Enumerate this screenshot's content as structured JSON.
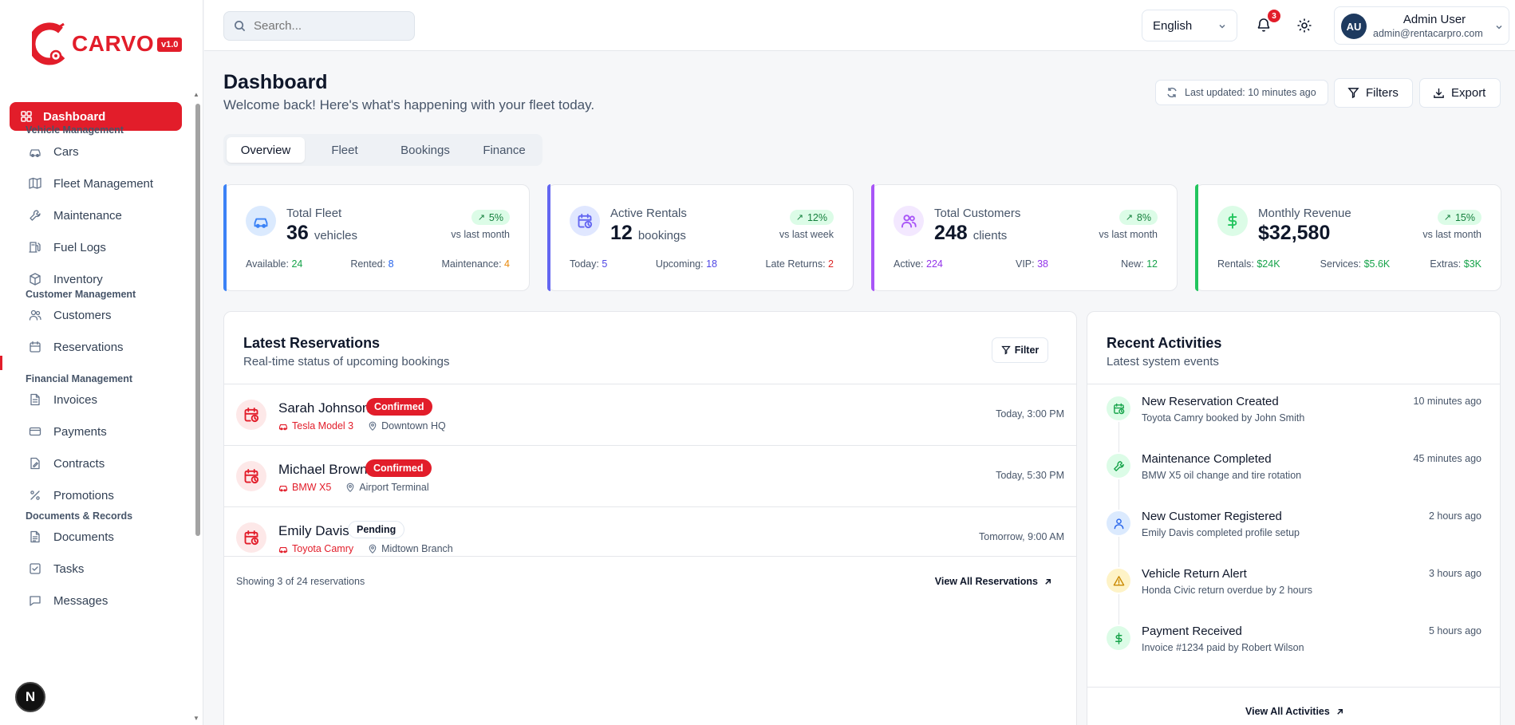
{
  "brand": {
    "name": "CARVO",
    "version": "v1.0",
    "accent": "#e21d2a"
  },
  "sidebar": {
    "active": {
      "label": "Dashboard",
      "icon": "dashboard-icon"
    },
    "sections": [
      {
        "title": "Vehicle Management",
        "items": [
          {
            "label": "Cars",
            "icon": "car-icon"
          },
          {
            "label": "Fleet Management",
            "icon": "map-icon"
          },
          {
            "label": "Maintenance",
            "icon": "wrench-icon"
          },
          {
            "label": "Fuel Logs",
            "icon": "fuel-icon"
          },
          {
            "label": "Inventory",
            "icon": "box-icon"
          }
        ]
      },
      {
        "title": "Customer Management",
        "items": [
          {
            "label": "Customers",
            "icon": "users-icon"
          },
          {
            "label": "Reservations",
            "icon": "calendar-icon"
          }
        ]
      },
      {
        "title": "Financial Management",
        "items": [
          {
            "label": "Invoices",
            "icon": "file-icon"
          },
          {
            "label": "Payments",
            "icon": "credit-card-icon"
          },
          {
            "label": "Contracts",
            "icon": "contract-icon"
          },
          {
            "label": "Promotions",
            "icon": "percent-icon"
          }
        ]
      },
      {
        "title": "Documents & Records",
        "items": [
          {
            "label": "Documents",
            "icon": "document-icon"
          },
          {
            "label": "Tasks",
            "icon": "task-icon"
          },
          {
            "label": "Messages",
            "icon": "message-icon"
          }
        ]
      }
    ],
    "badge": "N"
  },
  "topbar": {
    "search_placeholder": "Search...",
    "language": "English",
    "notifications": "3",
    "user": {
      "initials": "AU",
      "name": "Admin User",
      "email": "admin@rentacarpro.com"
    }
  },
  "header": {
    "title": "Dashboard",
    "subtitle": "Welcome back! Here's what's happening with your fleet today.",
    "last_updated": "Last updated: 10 minutes ago",
    "filters": "Filters",
    "export": "Export"
  },
  "tabs": [
    "Overview",
    "Fleet",
    "Bookings",
    "Finance"
  ],
  "stats": [
    {
      "label": "Total Fleet",
      "value": "36",
      "unit": "vehicles",
      "trend": "5%",
      "trend_sub": "vs last month",
      "color": "#3b82f6",
      "icon": "car-icon",
      "foot": [
        {
          "k": "Available:",
          "v": "24",
          "c": "#16a34a"
        },
        {
          "k": "Rented:",
          "v": "8",
          "c": "#2563eb"
        },
        {
          "k": "Maintenance:",
          "v": "4",
          "c": "#ea8a0c"
        }
      ]
    },
    {
      "label": "Active Rentals",
      "value": "12",
      "unit": "bookings",
      "trend": "12%",
      "trend_sub": "vs last week",
      "color": "#6366f1",
      "icon": "calendar-clock-icon",
      "foot": [
        {
          "k": "Today:",
          "v": "5",
          "c": "#4f46e5"
        },
        {
          "k": "Upcoming:",
          "v": "18",
          "c": "#4f46e5"
        },
        {
          "k": "Late Returns:",
          "v": "2",
          "c": "#dc2626"
        }
      ]
    },
    {
      "label": "Total Customers",
      "value": "248",
      "unit": "clients",
      "trend": "8%",
      "trend_sub": "vs last month",
      "color": "#a855f7",
      "icon": "users-icon",
      "foot": [
        {
          "k": "Active:",
          "v": "224",
          "c": "#9333ea"
        },
        {
          "k": "VIP:",
          "v": "38",
          "c": "#9333ea"
        },
        {
          "k": "New:",
          "v": "12",
          "c": "#16a34a"
        }
      ]
    },
    {
      "label": "Monthly Revenue",
      "value": "$32,580",
      "unit": "",
      "trend": "15%",
      "trend_sub": "vs last month",
      "color": "#22c55e",
      "icon": "dollar-icon",
      "foot": [
        {
          "k": "Rentals:",
          "v": "$24K",
          "c": "#16a34a"
        },
        {
          "k": "Services:",
          "v": "$5.6K",
          "c": "#16a34a"
        },
        {
          "k": "Extras:",
          "v": "$3K",
          "c": "#16a34a"
        }
      ]
    }
  ],
  "reservations": {
    "title": "Latest Reservations",
    "subtitle": "Real-time status of upcoming bookings",
    "filter": "Filter",
    "rows": [
      {
        "name": "Sarah Johnson",
        "status": "Confirmed",
        "car": "Tesla Model 3",
        "location": "Downtown HQ",
        "time": "Today, 3:00 PM"
      },
      {
        "name": "Michael Brown",
        "status": "Confirmed",
        "car": "BMW X5",
        "location": "Airport Terminal",
        "time": "Today, 5:30 PM"
      },
      {
        "name": "Emily Davis",
        "status": "Pending",
        "car": "Toyota Camry",
        "location": "Midtown Branch",
        "time": "Tomorrow, 9:00 AM"
      }
    ],
    "showing": "Showing 3 of 24 reservations",
    "view_all": "View All Reservations"
  },
  "activities": {
    "title": "Recent Activities",
    "subtitle": "Latest system events",
    "items": [
      {
        "title": "New Reservation Created",
        "desc": "Toyota Camry booked by John Smith",
        "time": "10 minutes ago",
        "icon": "calendar-clock-icon",
        "bg": "#dcfce7",
        "fg": "#16a34a"
      },
      {
        "title": "Maintenance Completed",
        "desc": "BMW X5 oil change and tire rotation",
        "time": "45 minutes ago",
        "icon": "wrench-icon",
        "bg": "#dcfce7",
        "fg": "#16a34a"
      },
      {
        "title": "New Customer Registered",
        "desc": "Emily Davis completed profile setup",
        "time": "2 hours ago",
        "icon": "user-icon",
        "bg": "#dbeafe",
        "fg": "#2563eb"
      },
      {
        "title": "Vehicle Return Alert",
        "desc": "Honda Civic return overdue by 2 hours",
        "time": "3 hours ago",
        "icon": "warning-icon",
        "bg": "#fef3c7",
        "fg": "#ca8a04"
      },
      {
        "title": "Payment Received",
        "desc": "Invoice #1234 paid by Robert Wilson",
        "time": "5 hours ago",
        "icon": "dollar-icon",
        "bg": "#dcfce7",
        "fg": "#16a34a"
      }
    ],
    "view_all": "View All Activities"
  }
}
